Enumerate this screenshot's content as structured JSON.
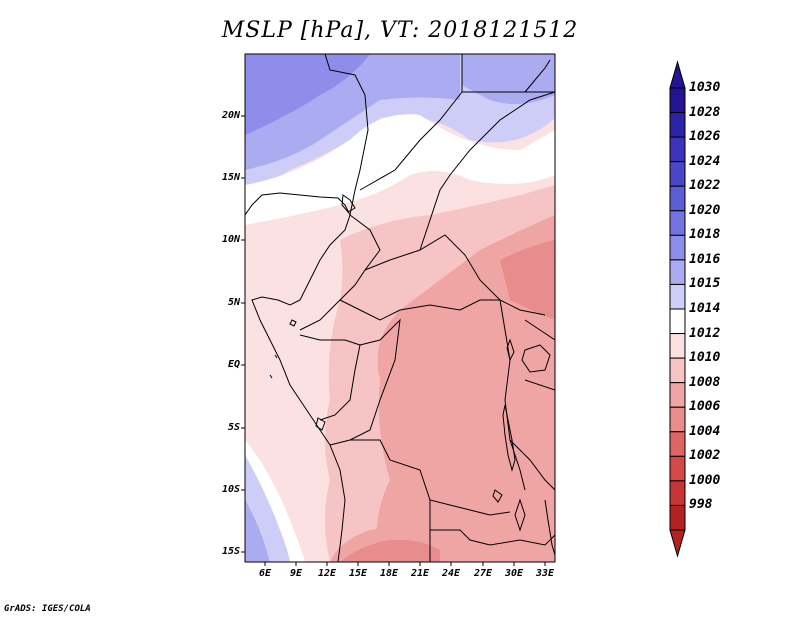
{
  "title": "MSLP [hPa], VT: 2018121512",
  "credit": "GrADS: IGES/COLA",
  "axes": {
    "lat_labels": [
      "20N",
      "15N",
      "10N",
      "5N",
      "EQ",
      "5S",
      "10S",
      "15S"
    ],
    "lon_labels": [
      "6E",
      "9E",
      "12E",
      "15E",
      "18E",
      "21E",
      "24E",
      "27E",
      "30E",
      "33E"
    ]
  },
  "colorbar": {
    "levels": [
      "1030",
      "1028",
      "1026",
      "1024",
      "1022",
      "1020",
      "1018",
      "1016",
      "1015",
      "1014",
      "1012",
      "1010",
      "1008",
      "1006",
      "1004",
      "1002",
      "1000",
      "998"
    ],
    "colors": [
      "#231496",
      "#2d23a8",
      "#3b33ba",
      "#4a46c8",
      "#5d5dd6",
      "#7373e2",
      "#8e8eea",
      "#ababf2",
      "#cdcdf8",
      "#ffffff",
      "#fbe1e1",
      "#f6c4c4",
      "#f0a5a5",
      "#e88d8d",
      "#df6565",
      "#d64848",
      "#c83535",
      "#b22222"
    ]
  }
}
